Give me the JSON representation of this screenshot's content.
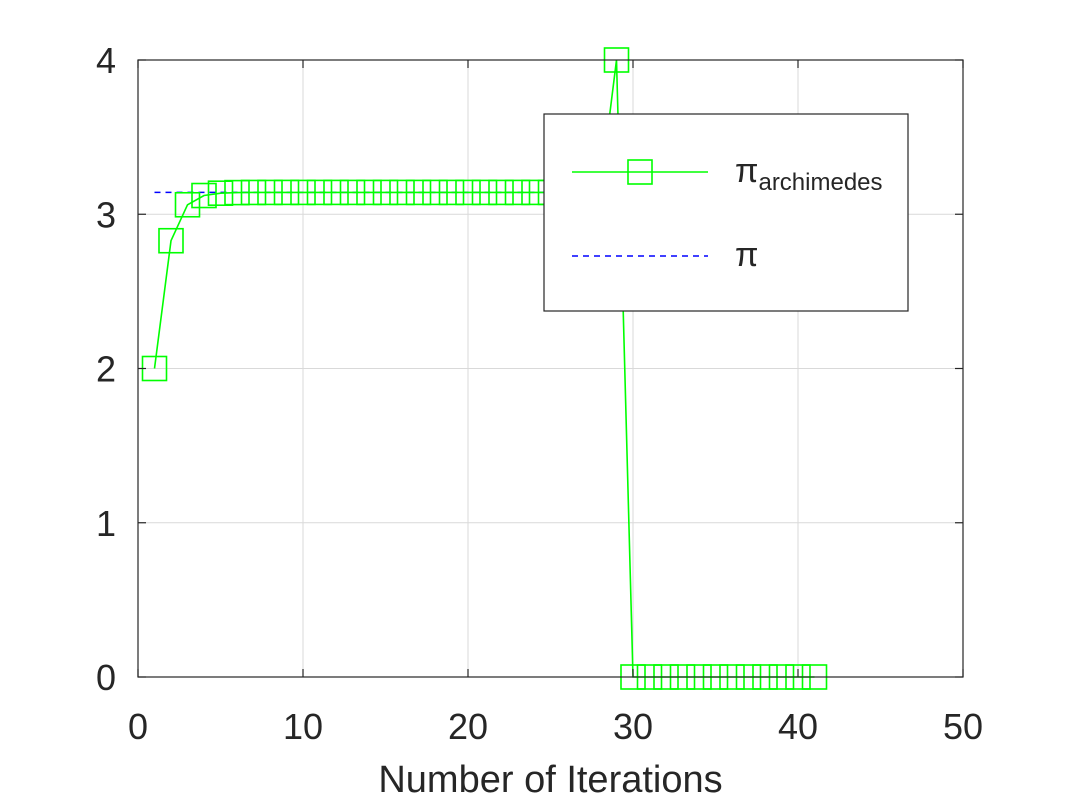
{
  "chart_data": {
    "type": "line",
    "title": "",
    "xlabel": "Number of Iterations",
    "ylabel": "",
    "xlim": [
      0,
      50
    ],
    "ylim": [
      0,
      4
    ],
    "xticks": [
      0,
      10,
      20,
      30,
      40,
      50
    ],
    "yticks": [
      0,
      1,
      2,
      3,
      4
    ],
    "grid": true,
    "legend_position": "top-right",
    "series": [
      {
        "name": "π",
        "name_subscript": "archimedes",
        "color": "#00ff00",
        "line_style": "solid",
        "marker": "square",
        "x": [
          1,
          2,
          3,
          4,
          5,
          6,
          7,
          8,
          9,
          10,
          11,
          12,
          13,
          14,
          15,
          16,
          17,
          18,
          19,
          20,
          21,
          22,
          23,
          24,
          25,
          26,
          27,
          28,
          29,
          30,
          31,
          32,
          33,
          34,
          35,
          36,
          37,
          38,
          39,
          40,
          41
        ],
        "y": [
          2.0,
          2.8284,
          3.0615,
          3.1214,
          3.1365,
          3.1403,
          3.1413,
          3.1415,
          3.1416,
          3.1416,
          3.1416,
          3.1416,
          3.1416,
          3.1416,
          3.1416,
          3.1416,
          3.1416,
          3.1416,
          3.1416,
          3.1416,
          3.1416,
          3.1416,
          3.1416,
          3.1416,
          3.1416,
          3.1416,
          3.1416,
          3.1416,
          4.0,
          0,
          0,
          0,
          0,
          0,
          0,
          0,
          0,
          0,
          0,
          0,
          0
        ]
      },
      {
        "name": "π",
        "color": "#0000ff",
        "line_style": "dashed",
        "marker": "none",
        "x": [
          1,
          41
        ],
        "y": [
          3.1416,
          3.1416
        ]
      }
    ]
  }
}
